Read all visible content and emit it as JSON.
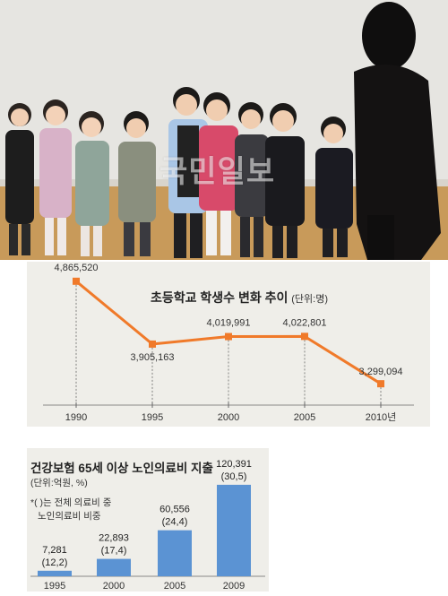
{
  "photo": {
    "watermark": "국민일보"
  },
  "chart_data": [
    {
      "type": "line",
      "title": "초등학교 학생수 변화 추이",
      "unit_label": "(단위:명)",
      "x": [
        "1990",
        "1995",
        "2000",
        "2005",
        "2010년"
      ],
      "values": [
        4865520,
        3905163,
        4019991,
        4022801,
        3299094
      ],
      "value_labels": [
        "4,865,520",
        "3,905,163",
        "4,019,991",
        "4,022,801",
        "3,299,094"
      ],
      "ylim": [
        3000000,
        5000000
      ],
      "grid": false,
      "color": "#f07a2a"
    },
    {
      "type": "bar",
      "title": "건강보험 65세 이상 노인의료비 지출",
      "unit_label": "(단위:억원, %)",
      "note_lines": [
        "*( )는 전체 의료비 중",
        "노인의료비 비중"
      ],
      "categories": [
        "1995",
        "2000",
        "2005",
        "2009"
      ],
      "values": [
        7281,
        22893,
        60556,
        120391
      ],
      "value_labels": [
        "7,281",
        "22,893",
        "60,556",
        "120,391"
      ],
      "share_labels": [
        "(12,2)",
        "(17,4)",
        "(24,4)",
        "(30,5)"
      ],
      "ylim": [
        0,
        125000
      ],
      "color": "#5b93d3"
    }
  ]
}
